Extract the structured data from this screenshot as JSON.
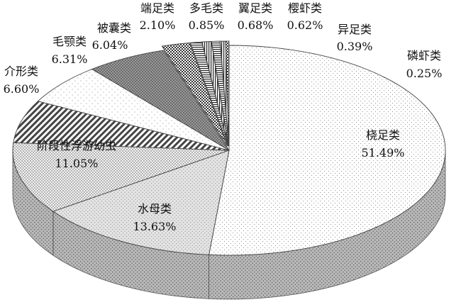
{
  "chart_data": {
    "type": "pie",
    "title": "",
    "style": "3d-exploded-pie",
    "slices": [
      {
        "name": "桡足类",
        "value": 51.49,
        "label": "51.49%"
      },
      {
        "name": "水母类",
        "value": 13.63,
        "label": "13.63%"
      },
      {
        "name": "阶段性浮游幼虫",
        "value": 11.05,
        "label": "11.05%"
      },
      {
        "name": "介形类",
        "value": 6.6,
        "label": "6.60%"
      },
      {
        "name": "毛颚类",
        "value": 6.31,
        "label": "6.31%"
      },
      {
        "name": "被囊类",
        "value": 6.04,
        "label": "6.04%"
      },
      {
        "name": "端足类",
        "value": 2.1,
        "label": "2.10%"
      },
      {
        "name": "多毛类",
        "value": 0.85,
        "label": "0.85%"
      },
      {
        "name": "翼足类",
        "value": 0.68,
        "label": "0.68%"
      },
      {
        "name": "樱虾类",
        "value": 0.62,
        "label": "0.62%"
      },
      {
        "name": "异足类",
        "value": 0.39,
        "label": "0.39%"
      },
      {
        "name": "磷虾类",
        "value": 0.25,
        "label": "0.25%"
      }
    ]
  }
}
